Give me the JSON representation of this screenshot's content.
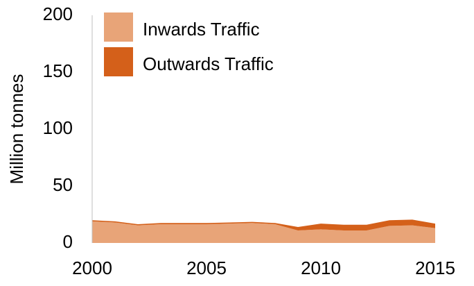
{
  "chart_data": {
    "type": "stacked_area",
    "y_label": "Million tonnes",
    "x": [
      2000,
      2001,
      2002,
      2003,
      2004,
      2005,
      2006,
      2007,
      2008,
      2009,
      2010,
      2011,
      2012,
      2013,
      2014,
      2015
    ],
    "series": [
      {
        "name": "Inwards Traffic",
        "color": "#e8a478",
        "values": [
          19,
          18,
          15.5,
          16.5,
          16.5,
          16.5,
          17,
          17.5,
          16.5,
          11,
          12,
          11,
          11,
          15,
          15.5,
          13
        ]
      },
      {
        "name": "Outwards Traffic",
        "color": "#d4601a",
        "values": [
          1,
          1,
          1,
          1,
          1,
          1,
          1,
          1,
          1,
          3,
          5,
          5,
          5,
          5,
          5,
          4
        ]
      }
    ],
    "xlim": [
      2000,
      2015
    ],
    "xticks": [
      2000,
      2005,
      2010,
      2015
    ],
    "ylim": [
      0,
      200
    ],
    "yticks": [
      0,
      50,
      100,
      150,
      200
    ],
    "legend": "upper left"
  }
}
